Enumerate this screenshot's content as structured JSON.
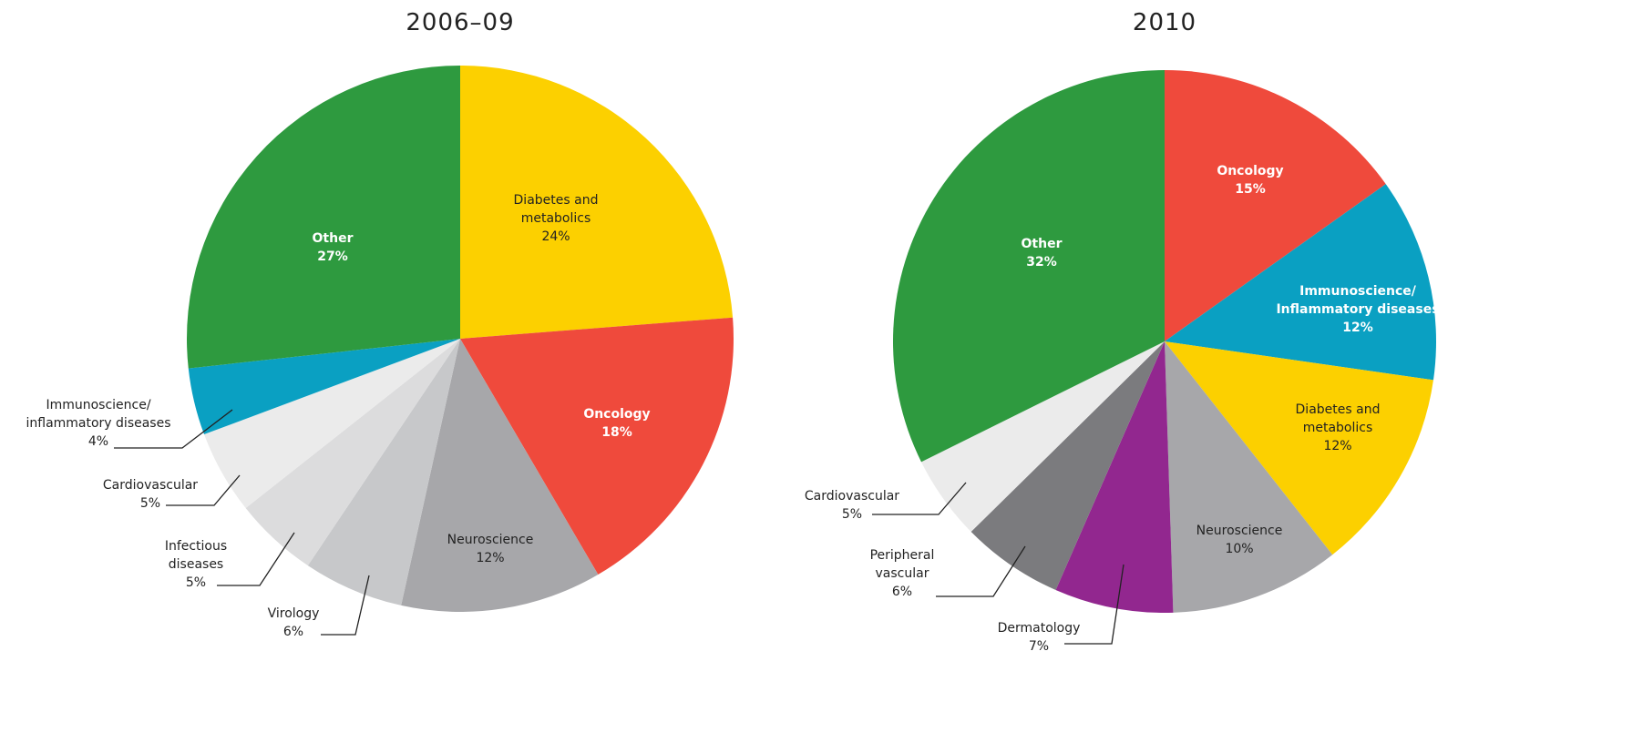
{
  "chart_data": [
    {
      "type": "pie",
      "title": "2006–09",
      "categories": [
        "Diabetes and\nmetabolics",
        "Oncology",
        "Neuroscience",
        "Virology",
        "Infectious\ndiseases",
        "Cardiovascular",
        "Immunoscience/\ninflammatory diseases",
        "Other"
      ],
      "values": [
        24,
        18,
        12,
        6,
        5,
        5,
        4,
        27
      ],
      "value_labels": [
        "24%",
        "18%",
        "12%",
        "6%",
        "5%",
        "5%",
        "4%",
        "27%"
      ],
      "colors": [
        "#fcd000",
        "#ef4a3c",
        "#a7a7aa",
        "#c7c8ca",
        "#dcdcdd",
        "#ebebeb",
        "#0aa0c2",
        "#2e9a3f"
      ]
    },
    {
      "type": "pie",
      "title": "2010",
      "categories": [
        "Oncology",
        "Immunoscience/\nInflammatory diseases",
        "Diabetes and\nmetabolics",
        "Neuroscience",
        "Dermatology",
        "Peripheral\nvascular",
        "Cardiovascular",
        "Other"
      ],
      "values": [
        15,
        12,
        12,
        10,
        7,
        6,
        5,
        32
      ],
      "value_labels": [
        "15%",
        "12%",
        "12%",
        "10%",
        "7%",
        "6%",
        "5%",
        "32%"
      ],
      "colors": [
        "#ef4a3c",
        "#0aa0c2",
        "#fcd000",
        "#a7a7aa",
        "#92278f",
        "#7b7b7e",
        "#ebebeb",
        "#2e9a3f"
      ]
    }
  ]
}
